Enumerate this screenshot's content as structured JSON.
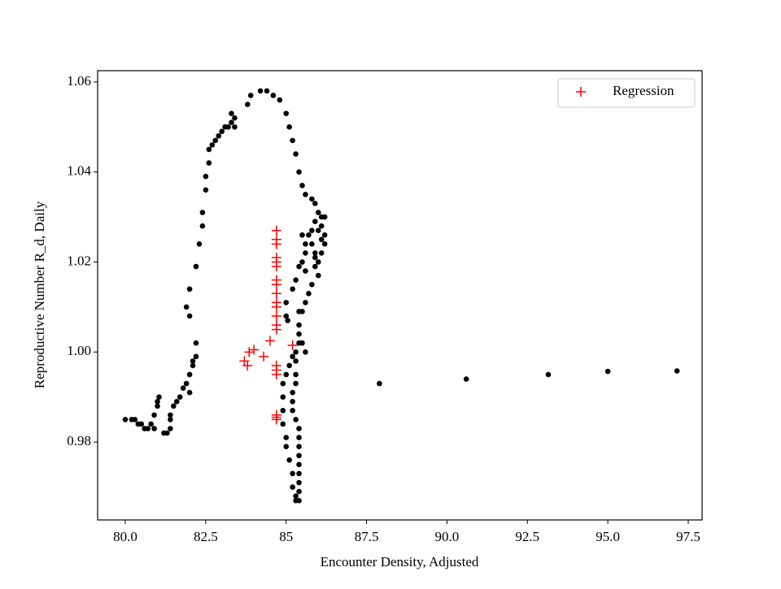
{
  "chart_data": {
    "type": "scatter",
    "xlabel": "Encounter Density, Adjusted",
    "ylabel": "Reproductive Number R_d, Daily",
    "xlim": [
      79.14,
      97.93
    ],
    "ylim": [
      0.9627,
      1.0625
    ],
    "xticks": [
      {
        "value": 80,
        "label": "80.0"
      },
      82.5,
      85,
      87.5,
      {
        "value": 90,
        "label": "90.0"
      },
      92.5,
      {
        "value": 95,
        "label": "95.0"
      },
      97.5
    ],
    "yticks": [
      0.98,
      {
        "value": 1,
        "label": "1.00"
      },
      1.02,
      1.04,
      1.06
    ],
    "legend": "upper right",
    "series": [
      {
        "color": "#000000",
        "marker": "o",
        "x": [
          80.0,
          80.2,
          80.3,
          80.4,
          80.5,
          80.6,
          80.7,
          80.8,
          80.9,
          81.0,
          81.0,
          81.05,
          80.9,
          81.2,
          81.3,
          81.4,
          81.4,
          81.4,
          81.5,
          81.6,
          81.7,
          81.8,
          81.9,
          82.0,
          82.1,
          82.1,
          82.2,
          82.0,
          82.2,
          82.0,
          81.9,
          82.0,
          82.2,
          82.3,
          82.4,
          82.4,
          82.5,
          82.5,
          82.6,
          82.6,
          82.7,
          82.8,
          82.9,
          83.0,
          83.1,
          83.2,
          83.3,
          83.3,
          83.4,
          83.4,
          83.8,
          83.9,
          84.2,
          84.4,
          84.6,
          84.8,
          85.0,
          85.1,
          85.2,
          85.3,
          85.4,
          85.5,
          85.6,
          85.8,
          85.9,
          86.0,
          86.1,
          86.2,
          86.1,
          86.2,
          86.2,
          86.1,
          86.0,
          85.9,
          85.8,
          85.7,
          85.8,
          85.9,
          85.9,
          86.0,
          86.1,
          85.6,
          85.5,
          85.4,
          85.3,
          85.2,
          85.0,
          85.0,
          85.05,
          85.5,
          85.6,
          85.6,
          85.9,
          86.0,
          85.8,
          85.7,
          85.6,
          85.5,
          85.4,
          85.4,
          85.4,
          85.3,
          85.3,
          85.3,
          85.3,
          85.2,
          85.2,
          85.2,
          85.3,
          85.4,
          85.4,
          85.4,
          85.4,
          85.4,
          85.4,
          85.4,
          85.4,
          85.3,
          85.4,
          85.3,
          85.2,
          85.2,
          85.1,
          85.0,
          85.0,
          84.9,
          84.9,
          84.9,
          84.9,
          85.0,
          85.1,
          85.2,
          85.5,
          85.6,
          85.4,
          87.9,
          90.6,
          93.15,
          95.0,
          97.15
        ],
        "values": [
          0.985,
          0.985,
          0.985,
          0.984,
          0.984,
          0.983,
          0.983,
          0.984,
          0.986,
          0.988,
          0.989,
          0.99,
          0.983,
          0.982,
          0.982,
          0.983,
          0.985,
          0.986,
          0.988,
          0.989,
          0.99,
          0.992,
          0.993,
          0.995,
          0.997,
          0.998,
          0.999,
          0.991,
          1.002,
          1.008,
          1.01,
          1.014,
          1.019,
          1.024,
          1.028,
          1.031,
          1.036,
          1.039,
          1.042,
          1.045,
          1.046,
          1.047,
          1.048,
          1.049,
          1.05,
          1.05,
          1.051,
          1.053,
          1.052,
          1.05,
          1.055,
          1.057,
          1.058,
          1.058,
          1.057,
          1.056,
          1.053,
          1.05,
          1.047,
          1.044,
          1.04,
          1.037,
          1.035,
          1.034,
          1.033,
          1.031,
          1.03,
          1.03,
          1.028,
          1.026,
          1.024,
          1.022,
          1.02,
          1.021,
          1.024,
          1.026,
          1.027,
          1.022,
          1.029,
          1.027,
          1.025,
          1.018,
          1.02,
          1.019,
          1.016,
          1.014,
          1.011,
          1.008,
          1.007,
          1.026,
          1.024,
          1.022,
          1.019,
          1.017,
          1.015,
          1.013,
          1.011,
          1.009,
          1.006,
          1.004,
          1.002,
          1.0,
          0.998,
          0.995,
          0.993,
          0.991,
          0.989,
          0.987,
          0.985,
          0.983,
          0.981,
          0.979,
          0.977,
          0.975,
          0.973,
          0.971,
          0.969,
          0.968,
          0.967,
          0.967,
          0.97,
          0.973,
          0.976,
          0.979,
          0.981,
          0.984,
          0.987,
          0.99,
          0.993,
          0.995,
          0.997,
          0.999,
          1.002,
          1.0,
          1.009,
          0.993,
          0.994,
          0.995,
          0.9957,
          0.9958
        ]
      },
      {
        "name": "Regression",
        "color": "#ff0000",
        "marker": "+",
        "x": [
          84.7,
          84.7,
          84.7,
          84.7,
          84.7,
          84.7,
          84.7,
          84.7,
          84.7,
          84.7,
          84.7,
          84.7,
          84.7,
          84.7,
          84.7,
          84.7,
          84.7,
          84.7,
          84.7,
          84.7,
          83.7,
          83.8,
          83.85,
          84.0,
          84.3,
          84.5,
          85.2
        ],
        "values": [
          1.027,
          1.025,
          1.024,
          1.021,
          1.02,
          1.019,
          1.016,
          1.015,
          1.013,
          1.011,
          1.01,
          1.008,
          1.006,
          1.005,
          0.997,
          0.996,
          0.995,
          0.986,
          0.985,
          0.9855,
          0.998,
          0.997,
          1.0,
          1.0005,
          0.999,
          1.0025,
          1.0015
        ]
      }
    ]
  }
}
